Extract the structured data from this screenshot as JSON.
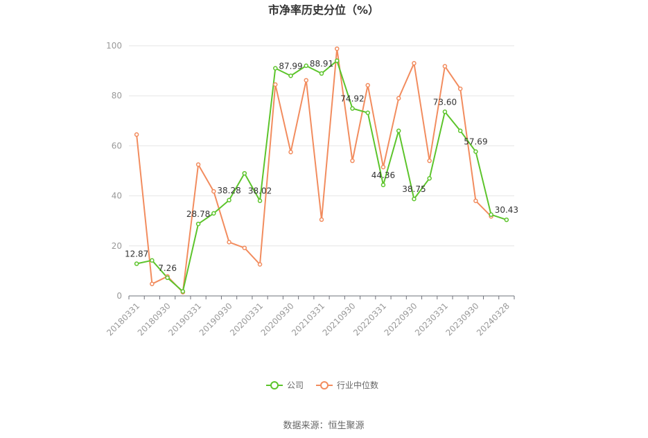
{
  "chart_data": {
    "type": "line",
    "title": "市净率历史分位（%）",
    "source": "数据来源：恒生聚源",
    "xlabel": "",
    "ylabel": "",
    "ylim": [
      0,
      100
    ],
    "yticks": [
      "0",
      "20",
      "40",
      "60",
      "80",
      "100"
    ],
    "grid": true,
    "legend_position": "bottom",
    "x": [
      "20180331",
      "20180630",
      "20180930",
      "20181231",
      "20190331",
      "20190630",
      "20190930",
      "20191231",
      "20200331",
      "20200630",
      "20200930",
      "20201231",
      "20210331",
      "20210630",
      "20210930",
      "20211231",
      "20220331",
      "20220630",
      "20220930",
      "20221231",
      "20230331",
      "20230630",
      "20230930",
      "20231231",
      "20240328"
    ],
    "xtick_labels": [
      "20180331",
      "20180930",
      "20190331",
      "20190930",
      "20200331",
      "20200930",
      "20210331",
      "20210930",
      "20220331",
      "20220930",
      "20230331",
      "20230930",
      "20240328"
    ],
    "series": [
      {
        "name": "公司",
        "color": "#5cc42b",
        "values": [
          12.87,
          14.2,
          7.26,
          1.8,
          28.78,
          33.0,
          38.28,
          49.0,
          38.02,
          91.0,
          87.99,
          92.0,
          88.91,
          94.0,
          74.92,
          73.2,
          44.36,
          66.0,
          38.75,
          47.0,
          73.6,
          66.0,
          57.69,
          32.5,
          30.43
        ]
      },
      {
        "name": "行业中位数",
        "color": "#f28c5e",
        "values": [
          64.5,
          4.8,
          7.8,
          1.5,
          52.5,
          41.8,
          21.5,
          19.2,
          12.6,
          84.5,
          57.5,
          86.2,
          30.5,
          98.8,
          54.0,
          84.2,
          51.5,
          79.0,
          93.0,
          54.0,
          91.8,
          82.8,
          38.0,
          31.8,
          null
        ]
      }
    ],
    "data_labels": [
      {
        "series": 0,
        "index": 0,
        "text": "12.87"
      },
      {
        "series": 0,
        "index": 2,
        "text": "7.26"
      },
      {
        "series": 0,
        "index": 4,
        "text": "28.78"
      },
      {
        "series": 0,
        "index": 6,
        "text": "38.28"
      },
      {
        "series": 0,
        "index": 8,
        "text": "38.02"
      },
      {
        "series": 0,
        "index": 10,
        "text": "87.99"
      },
      {
        "series": 0,
        "index": 12,
        "text": "88.91"
      },
      {
        "series": 0,
        "index": 14,
        "text": "74.92"
      },
      {
        "series": 0,
        "index": 16,
        "text": "44.36"
      },
      {
        "series": 0,
        "index": 18,
        "text": "38.75"
      },
      {
        "series": 0,
        "index": 20,
        "text": "73.60"
      },
      {
        "series": 0,
        "index": 22,
        "text": "57.69"
      },
      {
        "series": 0,
        "index": 24,
        "text": "30.43"
      }
    ]
  }
}
